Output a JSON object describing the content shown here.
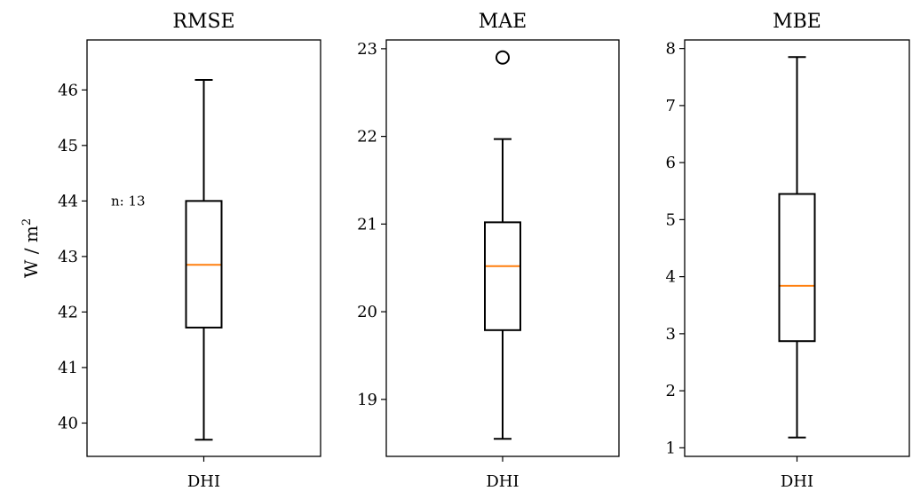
{
  "chart_data": [
    {
      "type": "box",
      "title": "RMSE",
      "ylabel": "W / m",
      "ylabel_superscript": "2",
      "categories": [
        "DHI"
      ],
      "yticks": [
        40,
        41,
        42,
        43,
        44,
        45,
        46
      ],
      "ylim": [
        39.4,
        46.9
      ],
      "box": {
        "min": 39.7,
        "q1": 41.72,
        "median": 42.85,
        "q3": 44.0,
        "max": 46.18,
        "fliers": []
      },
      "median_color": "#ff7f0e",
      "annotation": "n: 13"
    },
    {
      "type": "box",
      "title": "MAE",
      "categories": [
        "DHI"
      ],
      "yticks": [
        19,
        20,
        21,
        22,
        23
      ],
      "ylim": [
        18.35,
        23.1
      ],
      "box": {
        "min": 18.55,
        "q1": 19.79,
        "median": 20.52,
        "q3": 21.02,
        "max": 21.97,
        "fliers": [
          22.9
        ]
      },
      "median_color": "#ff7f0e"
    },
    {
      "type": "box",
      "title": "MBE",
      "categories": [
        "DHI"
      ],
      "yticks": [
        1,
        2,
        3,
        4,
        5,
        6,
        7,
        8
      ],
      "ylim": [
        0.85,
        8.15
      ],
      "box": {
        "min": 1.18,
        "q1": 2.87,
        "median": 3.84,
        "q3": 5.45,
        "max": 7.85,
        "fliers": []
      },
      "median_color": "#ff7f0e"
    }
  ]
}
